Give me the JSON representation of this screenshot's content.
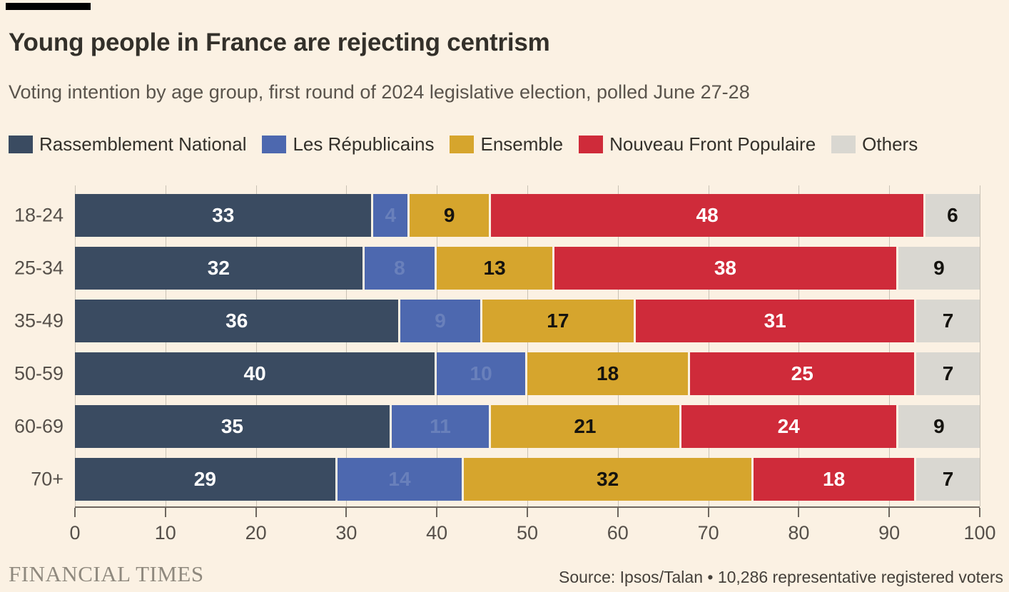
{
  "header": {
    "title": "Young people in France are rejecting centrism",
    "subtitle": "Voting intention by age group, first round of 2024 legislative election, polled June 27-28"
  },
  "footer": {
    "brand": "FINANCIAL TIMES",
    "source": "Source: Ipsos/Talan • 10,286 representative registered voters"
  },
  "colors": {
    "background": "#fbf1e3",
    "grid": "#c9c2b5",
    "axis": "#6e675f",
    "rassemblement_national": "#3a4b61",
    "les_republicains": "#4d68af",
    "ensemble": "#d6a52d",
    "nouveau_front_populaire": "#cf2b3a",
    "others": "#d9d7d1"
  },
  "chart_data": {
    "type": "bar",
    "stacked": true,
    "orientation": "horizontal",
    "title": "Young people in France are rejecting centrism",
    "subtitle": "Voting intention by age group, first round of 2024 legislative election, polled June 27-28",
    "categories": [
      "18-24",
      "25-34",
      "35-49",
      "50-59",
      "60-69",
      "70+"
    ],
    "series": [
      {
        "name": "Rassemblement National",
        "color": "#3a4b61",
        "label_color": "#ffffff",
        "values": [
          33,
          32,
          36,
          40,
          35,
          29
        ]
      },
      {
        "name": "Les Républicains",
        "color": "#4d68af",
        "label_color": "rgba(255,255,255,0.16)",
        "values": [
          4,
          8,
          9,
          10,
          11,
          14
        ]
      },
      {
        "name": "Ensemble",
        "color": "#d6a52d",
        "label_color": "#15130f",
        "values": [
          9,
          13,
          17,
          18,
          21,
          32
        ]
      },
      {
        "name": "Nouveau Front Populaire",
        "color": "#cf2b3a",
        "label_color": "#ffffff",
        "values": [
          48,
          38,
          31,
          25,
          24,
          18
        ]
      },
      {
        "name": "Others",
        "color": "#d9d7d1",
        "label_color": "#15130f",
        "values": [
          6,
          9,
          7,
          7,
          9,
          7
        ]
      }
    ],
    "xlim": [
      0,
      100
    ],
    "x_ticks": [
      0,
      10,
      20,
      30,
      40,
      50,
      60,
      70,
      80,
      90,
      100
    ],
    "grid": true,
    "legend_position": "top"
  }
}
